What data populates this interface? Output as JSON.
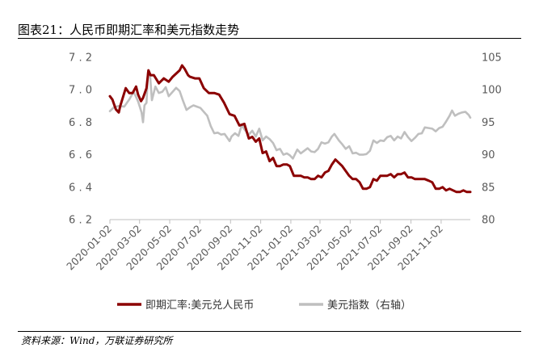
{
  "figure": {
    "title": "图表21：人民币即期汇率和美元指数走势",
    "source": "资料来源：Wind，万联证券研究所"
  },
  "chart_data": {
    "type": "line",
    "title": "图表21：人民币即期汇率和美元指数走势",
    "x_ticks": [
      "2020-01-02",
      "2020-03-02",
      "2020-05-02",
      "2020-07-02",
      "2020-09-02",
      "2020-11-02",
      "2021-01-02",
      "2021-03-02",
      "2021-05-02",
      "2021-07-02",
      "2021-09-02",
      "2021-11-02"
    ],
    "x_range": [
      "2020-01-02",
      "2021-12-31"
    ],
    "y_left": {
      "ticks": [
        6.2,
        6.4,
        6.6,
        6.8,
        7.0,
        7.2
      ],
      "ylim": [
        6.2,
        7.2
      ]
    },
    "y_right": {
      "ticks": [
        80,
        85,
        90,
        95,
        100,
        105
      ],
      "ylim": [
        80,
        105
      ]
    },
    "grid": false,
    "legend_position": "bottom",
    "series": [
      {
        "name": "即期汇率:美元兑人民币",
        "axis": "left",
        "color": "#8B0000",
        "points": [
          [
            "2020-01-02",
            6.96
          ],
          [
            "2020-01-07",
            6.94
          ],
          [
            "2020-01-14",
            6.88
          ],
          [
            "2020-01-20",
            6.86
          ],
          [
            "2020-01-23",
            6.9
          ],
          [
            "2020-02-03",
            7.01
          ],
          [
            "2020-02-10",
            6.98
          ],
          [
            "2020-02-17",
            6.98
          ],
          [
            "2020-02-24",
            7.02
          ],
          [
            "2020-02-28",
            6.97
          ],
          [
            "2020-03-05",
            6.93
          ],
          [
            "2020-03-09",
            6.95
          ],
          [
            "2020-03-16",
            7.01
          ],
          [
            "2020-03-20",
            7.12
          ],
          [
            "2020-03-24",
            7.09
          ],
          [
            "2020-03-31",
            7.09
          ],
          [
            "2020-04-10",
            7.04
          ],
          [
            "2020-04-20",
            7.07
          ],
          [
            "2020-04-30",
            7.05
          ],
          [
            "2020-05-08",
            7.08
          ],
          [
            "2020-05-15",
            7.1
          ],
          [
            "2020-05-22",
            7.12
          ],
          [
            "2020-05-27",
            7.15
          ],
          [
            "2020-06-01",
            7.13
          ],
          [
            "2020-06-08",
            7.09
          ],
          [
            "2020-06-12",
            7.08
          ],
          [
            "2020-06-22",
            7.07
          ],
          [
            "2020-07-01",
            7.07
          ],
          [
            "2020-07-10",
            7.01
          ],
          [
            "2020-07-20",
            6.98
          ],
          [
            "2020-07-31",
            6.98
          ],
          [
            "2020-08-10",
            6.97
          ],
          [
            "2020-08-20",
            6.92
          ],
          [
            "2020-08-31",
            6.85
          ],
          [
            "2020-09-10",
            6.84
          ],
          [
            "2020-09-20",
            6.78
          ],
          [
            "2020-09-30",
            6.79
          ],
          [
            "2020-10-09",
            6.7
          ],
          [
            "2020-10-16",
            6.71
          ],
          [
            "2020-10-23",
            6.68
          ],
          [
            "2020-10-30",
            6.7
          ],
          [
            "2020-11-06",
            6.61
          ],
          [
            "2020-11-13",
            6.62
          ],
          [
            "2020-11-20",
            6.56
          ],
          [
            "2020-11-27",
            6.58
          ],
          [
            "2020-12-04",
            6.53
          ],
          [
            "2020-12-11",
            6.53
          ],
          [
            "2020-12-18",
            6.54
          ],
          [
            "2020-12-25",
            6.54
          ],
          [
            "2020-12-31",
            6.53
          ],
          [
            "2021-01-08",
            6.47
          ],
          [
            "2021-01-15",
            6.47
          ],
          [
            "2021-01-22",
            6.47
          ],
          [
            "2021-01-29",
            6.46
          ],
          [
            "2021-02-05",
            6.46
          ],
          [
            "2021-02-12",
            6.45
          ],
          [
            "2021-02-19",
            6.45
          ],
          [
            "2021-02-26",
            6.47
          ],
          [
            "2021-03-05",
            6.46
          ],
          [
            "2021-03-12",
            6.49
          ],
          [
            "2021-03-19",
            6.5
          ],
          [
            "2021-03-26",
            6.54
          ],
          [
            "2021-04-02",
            6.57
          ],
          [
            "2021-04-09",
            6.55
          ],
          [
            "2021-04-16",
            6.53
          ],
          [
            "2021-04-23",
            6.5
          ],
          [
            "2021-04-30",
            6.47
          ],
          [
            "2021-05-07",
            6.45
          ],
          [
            "2021-05-14",
            6.45
          ],
          [
            "2021-05-21",
            6.43
          ],
          [
            "2021-05-28",
            6.39
          ],
          [
            "2021-06-04",
            6.39
          ],
          [
            "2021-06-11",
            6.4
          ],
          [
            "2021-06-18",
            6.45
          ],
          [
            "2021-06-25",
            6.44
          ],
          [
            "2021-07-02",
            6.47
          ],
          [
            "2021-07-09",
            6.47
          ],
          [
            "2021-07-16",
            6.47
          ],
          [
            "2021-07-23",
            6.48
          ],
          [
            "2021-07-30",
            6.46
          ],
          [
            "2021-08-06",
            6.48
          ],
          [
            "2021-08-13",
            6.48
          ],
          [
            "2021-08-20",
            6.49
          ],
          [
            "2021-08-27",
            6.46
          ],
          [
            "2021-09-03",
            6.46
          ],
          [
            "2021-09-10",
            6.45
          ],
          [
            "2021-09-17",
            6.45
          ],
          [
            "2021-09-24",
            6.45
          ],
          [
            "2021-09-30",
            6.45
          ],
          [
            "2021-10-08",
            6.44
          ],
          [
            "2021-10-15",
            6.43
          ],
          [
            "2021-10-22",
            6.39
          ],
          [
            "2021-10-29",
            6.39
          ],
          [
            "2021-11-05",
            6.4
          ],
          [
            "2021-11-12",
            6.38
          ],
          [
            "2021-11-19",
            6.39
          ],
          [
            "2021-11-26",
            6.38
          ],
          [
            "2021-12-03",
            6.37
          ],
          [
            "2021-12-10",
            6.37
          ],
          [
            "2021-12-17",
            6.38
          ],
          [
            "2021-12-24",
            6.37
          ],
          [
            "2021-12-31",
            6.37
          ]
        ]
      },
      {
        "name": "美元指数（右轴）",
        "axis": "right",
        "color": "#BFBFBF",
        "points": [
          [
            "2020-01-02",
            96.7
          ],
          [
            "2020-01-10",
            97.3
          ],
          [
            "2020-01-20",
            97.5
          ],
          [
            "2020-01-31",
            97.4
          ],
          [
            "2020-02-10",
            98.5
          ],
          [
            "2020-02-19",
            99.7
          ],
          [
            "2020-02-28",
            98.2
          ],
          [
            "2020-03-06",
            96.5
          ],
          [
            "2020-03-09",
            95.0
          ],
          [
            "2020-03-12",
            97.6
          ],
          [
            "2020-03-16",
            98.0
          ],
          [
            "2020-03-19",
            102.7
          ],
          [
            "2020-03-23",
            102.4
          ],
          [
            "2020-03-27",
            98.4
          ],
          [
            "2020-04-03",
            100.5
          ],
          [
            "2020-04-10",
            99.5
          ],
          [
            "2020-04-17",
            99.7
          ],
          [
            "2020-04-24",
            100.4
          ],
          [
            "2020-04-30",
            99.0
          ],
          [
            "2020-05-08",
            99.7
          ],
          [
            "2020-05-15",
            100.3
          ],
          [
            "2020-05-22",
            99.8
          ],
          [
            "2020-05-29",
            98.3
          ],
          [
            "2020-06-05",
            96.9
          ],
          [
            "2020-06-12",
            97.3
          ],
          [
            "2020-06-19",
            97.6
          ],
          [
            "2020-06-26",
            97.4
          ],
          [
            "2020-07-03",
            97.2
          ],
          [
            "2020-07-10",
            96.6
          ],
          [
            "2020-07-17",
            96.0
          ],
          [
            "2020-07-24",
            94.4
          ],
          [
            "2020-07-31",
            93.3
          ],
          [
            "2020-08-07",
            93.4
          ],
          [
            "2020-08-14",
            93.1
          ],
          [
            "2020-08-21",
            93.2
          ],
          [
            "2020-08-31",
            92.1
          ],
          [
            "2020-09-04",
            92.8
          ],
          [
            "2020-09-11",
            93.3
          ],
          [
            "2020-09-18",
            92.9
          ],
          [
            "2020-09-25",
            94.6
          ],
          [
            "2020-09-30",
            93.9
          ],
          [
            "2020-10-09",
            93.1
          ],
          [
            "2020-10-16",
            93.7
          ],
          [
            "2020-10-23",
            92.8
          ],
          [
            "2020-10-30",
            94.0
          ],
          [
            "2020-11-06",
            92.2
          ],
          [
            "2020-11-13",
            92.8
          ],
          [
            "2020-11-20",
            92.4
          ],
          [
            "2020-11-27",
            91.8
          ],
          [
            "2020-12-04",
            90.7
          ],
          [
            "2020-12-11",
            90.9
          ],
          [
            "2020-12-18",
            90.0
          ],
          [
            "2020-12-25",
            90.2
          ],
          [
            "2020-12-31",
            89.9
          ],
          [
            "2021-01-06",
            89.4
          ],
          [
            "2021-01-15",
            90.8
          ],
          [
            "2021-01-22",
            90.2
          ],
          [
            "2021-01-29",
            90.6
          ],
          [
            "2021-02-05",
            91.0
          ],
          [
            "2021-02-12",
            90.5
          ],
          [
            "2021-02-19",
            90.4
          ],
          [
            "2021-02-26",
            90.9
          ],
          [
            "2021-03-05",
            91.9
          ],
          [
            "2021-03-12",
            91.7
          ],
          [
            "2021-03-19",
            91.9
          ],
          [
            "2021-03-26",
            92.8
          ],
          [
            "2021-03-31",
            93.2
          ],
          [
            "2021-04-09",
            92.2
          ],
          [
            "2021-04-16",
            91.6
          ],
          [
            "2021-04-23",
            90.9
          ],
          [
            "2021-04-30",
            91.3
          ],
          [
            "2021-05-07",
            90.2
          ],
          [
            "2021-05-14",
            90.3
          ],
          [
            "2021-05-21",
            90.0
          ],
          [
            "2021-05-28",
            90.0
          ],
          [
            "2021-06-04",
            90.1
          ],
          [
            "2021-06-11",
            90.6
          ],
          [
            "2021-06-18",
            92.2
          ],
          [
            "2021-06-25",
            91.8
          ],
          [
            "2021-07-02",
            92.2
          ],
          [
            "2021-07-09",
            92.1
          ],
          [
            "2021-07-16",
            92.7
          ],
          [
            "2021-07-23",
            92.9
          ],
          [
            "2021-07-30",
            92.2
          ],
          [
            "2021-08-06",
            92.8
          ],
          [
            "2021-08-13",
            92.5
          ],
          [
            "2021-08-20",
            93.5
          ],
          [
            "2021-08-27",
            92.7
          ],
          [
            "2021-09-03",
            92.1
          ],
          [
            "2021-09-10",
            92.6
          ],
          [
            "2021-09-17",
            93.2
          ],
          [
            "2021-09-24",
            93.3
          ],
          [
            "2021-09-30",
            94.2
          ],
          [
            "2021-10-08",
            94.1
          ],
          [
            "2021-10-15",
            94.0
          ],
          [
            "2021-10-22",
            93.6
          ],
          [
            "2021-10-29",
            94.1
          ],
          [
            "2021-11-05",
            94.3
          ],
          [
            "2021-11-12",
            95.1
          ],
          [
            "2021-11-19",
            96.0
          ],
          [
            "2021-11-24",
            96.8
          ],
          [
            "2021-11-30",
            96.0
          ],
          [
            "2021-12-07",
            96.3
          ],
          [
            "2021-12-14",
            96.5
          ],
          [
            "2021-12-21",
            96.6
          ],
          [
            "2021-12-28",
            96.1
          ],
          [
            "2021-12-31",
            95.7
          ]
        ]
      }
    ]
  }
}
